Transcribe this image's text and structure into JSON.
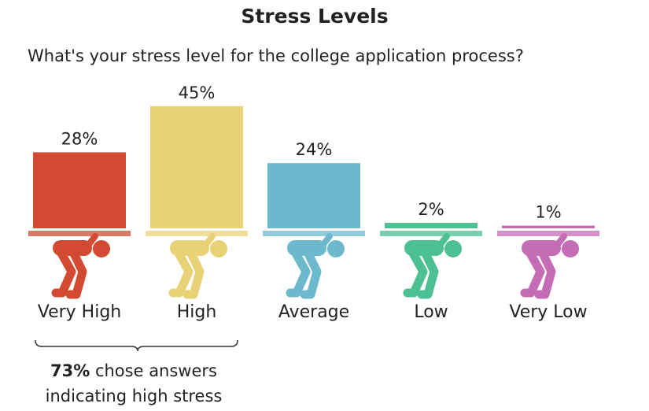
{
  "chart_data": {
    "type": "bar",
    "title": "Stress Levels",
    "subtitle": "What's your stress level for the college application process?",
    "categories": [
      "Very High",
      "High",
      "Average",
      "Low",
      "Very Low"
    ],
    "values": [
      28,
      45,
      24,
      2,
      1
    ],
    "value_labels": [
      "28%",
      "45%",
      "24%",
      "2%",
      "1%"
    ],
    "colors": [
      "#d34a32",
      "#e9d276",
      "#6cb9cd",
      "#4cbf93",
      "#c46cb5"
    ],
    "annotation": {
      "emphasis": "73%",
      "lines": [
        "chose answers",
        "indicating high stress"
      ]
    }
  }
}
